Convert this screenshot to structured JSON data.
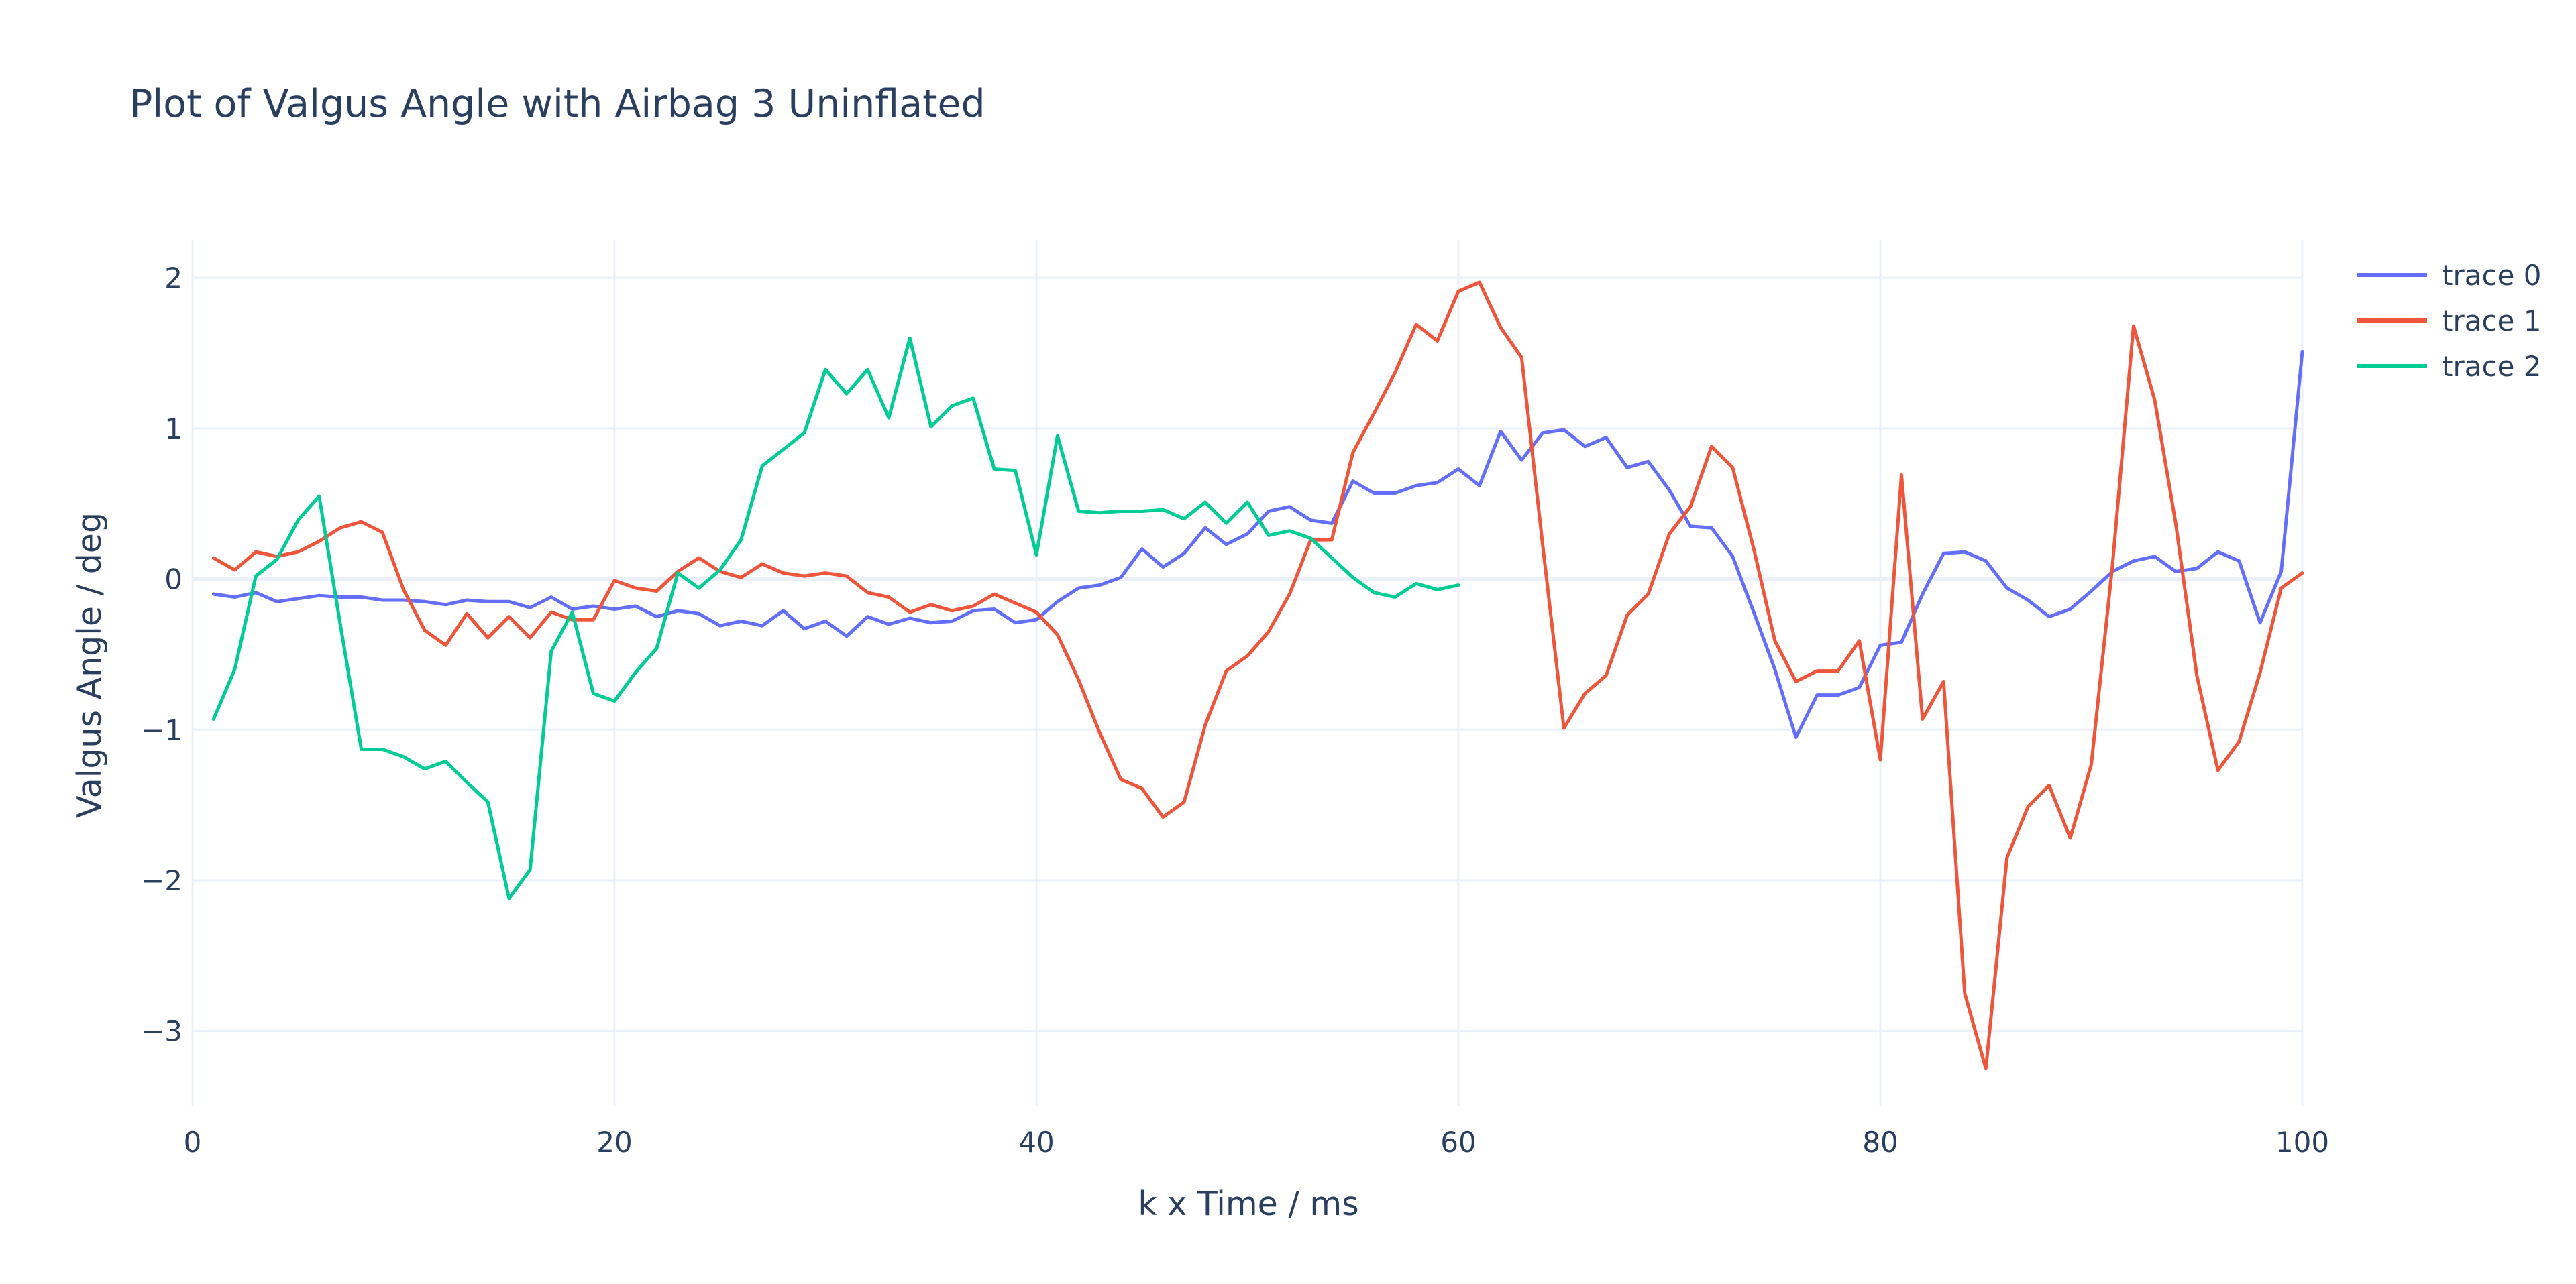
{
  "chart_data": {
    "type": "line",
    "title": "Plot of Valgus Angle with Airbag 3 Uninflated",
    "xlabel": "k x Time / ms",
    "ylabel": "Valgus Angle / deg",
    "xlim": [
      0,
      100
    ],
    "ylim": [
      -3.5,
      2.25
    ],
    "x_ticks": [
      0,
      20,
      40,
      60,
      80,
      100
    ],
    "x_tick_labels": [
      "0",
      "20",
      "40",
      "60",
      "80",
      "100"
    ],
    "y_ticks": [
      -3,
      -2,
      -1,
      0,
      1,
      2
    ],
    "y_tick_labels": [
      "−3",
      "−2",
      "−1",
      "0",
      "1",
      "2"
    ],
    "grid": true,
    "legend_position": "top-right",
    "series": [
      {
        "name": "trace 0",
        "color": "#636efa",
        "x": [
          1,
          2,
          3,
          4,
          5,
          6,
          7,
          8,
          9,
          10,
          11,
          12,
          13,
          14,
          15,
          16,
          17,
          18,
          19,
          20,
          21,
          22,
          23,
          24,
          25,
          26,
          27,
          28,
          29,
          30,
          31,
          32,
          33,
          34,
          35,
          36,
          37,
          38,
          39,
          40,
          41,
          42,
          43,
          44,
          45,
          46,
          47,
          48,
          49,
          50,
          51,
          52,
          53,
          54,
          55,
          56,
          57,
          58,
          59,
          60,
          61,
          62,
          63,
          64,
          65,
          66,
          67,
          68,
          69,
          70,
          71,
          72,
          73,
          74,
          75,
          76,
          77,
          78,
          79,
          80,
          81,
          82,
          83,
          84,
          85,
          86,
          87,
          88,
          89,
          90,
          91,
          92,
          93,
          94,
          95,
          96,
          97,
          98,
          99,
          100
        ],
        "y": [
          -0.1,
          -0.12,
          -0.09,
          -0.15,
          -0.13,
          -0.11,
          -0.12,
          -0.12,
          -0.14,
          -0.14,
          -0.15,
          -0.17,
          -0.14,
          -0.15,
          -0.15,
          -0.19,
          -0.12,
          -0.2,
          -0.18,
          -0.2,
          -0.18,
          -0.25,
          -0.21,
          -0.23,
          -0.31,
          -0.28,
          -0.31,
          -0.21,
          -0.33,
          -0.28,
          -0.38,
          -0.25,
          -0.3,
          -0.26,
          -0.29,
          -0.28,
          -0.21,
          -0.2,
          -0.29,
          -0.27,
          -0.15,
          -0.06,
          -0.04,
          0.01,
          0.2,
          0.08,
          0.17,
          0.34,
          0.23,
          0.3,
          0.45,
          0.48,
          0.39,
          0.37,
          0.65,
          0.57,
          0.57,
          0.62,
          0.64,
          0.73,
          0.62,
          0.98,
          0.79,
          0.97,
          0.99,
          0.88,
          0.94,
          0.74,
          0.78,
          0.59,
          0.35,
          0.34,
          0.15,
          -0.22,
          -0.6,
          -1.05,
          -0.77,
          -0.77,
          -0.72,
          -0.44,
          -0.42,
          -0.1,
          0.17,
          0.18,
          0.12,
          -0.06,
          -0.14,
          -0.25,
          -0.2,
          -0.08,
          0.05,
          0.12,
          0.15,
          0.05,
          0.07,
          0.18,
          0.12,
          -0.29,
          0.05,
          1.51
        ]
      },
      {
        "name": "trace 1",
        "color": "#ef553b",
        "x": [
          1,
          2,
          3,
          4,
          5,
          6,
          7,
          8,
          9,
          10,
          11,
          12,
          13,
          14,
          15,
          16,
          17,
          18,
          19,
          20,
          21,
          22,
          23,
          24,
          25,
          26,
          27,
          28,
          29,
          30,
          31,
          32,
          33,
          34,
          35,
          36,
          37,
          38,
          39,
          40,
          41,
          42,
          43,
          44,
          45,
          46,
          47,
          48,
          49,
          50,
          51,
          52,
          53,
          54,
          55,
          56,
          57,
          58,
          59,
          60,
          61,
          62,
          63,
          64,
          65,
          66,
          67,
          68,
          69,
          70,
          71,
          72,
          73,
          74,
          75,
          76,
          77,
          78,
          79,
          80,
          81,
          82,
          83,
          84,
          85,
          86,
          87,
          88,
          89,
          90,
          91,
          92,
          93,
          94,
          95,
          96,
          97,
          98,
          99,
          100
        ],
        "y": [
          0.14,
          0.06,
          0.18,
          0.15,
          0.18,
          0.25,
          0.34,
          0.38,
          0.31,
          -0.07,
          -0.34,
          -0.44,
          -0.23,
          -0.39,
          -0.25,
          -0.39,
          -0.22,
          -0.27,
          -0.27,
          -0.01,
          -0.06,
          -0.08,
          0.05,
          0.14,
          0.05,
          0.01,
          0.1,
          0.04,
          0.02,
          0.04,
          0.02,
          -0.09,
          -0.12,
          -0.22,
          -0.17,
          -0.21,
          -0.18,
          -0.1,
          -0.16,
          -0.22,
          -0.37,
          -0.67,
          -1.02,
          -1.33,
          -1.39,
          -1.58,
          -1.48,
          -0.97,
          -0.61,
          -0.51,
          -0.35,
          -0.1,
          0.26,
          0.26,
          0.84,
          1.1,
          1.37,
          1.69,
          1.58,
          1.91,
          1.97,
          1.67,
          1.47,
          0.22,
          -0.99,
          -0.76,
          -0.64,
          -0.24,
          -0.1,
          0.3,
          0.48,
          0.88,
          0.74,
          0.2,
          -0.41,
          -0.68,
          -0.61,
          -0.61,
          -0.41,
          -1.2,
          0.69,
          -0.93,
          -0.68,
          -2.75,
          -3.25,
          -1.85,
          -1.51,
          -1.37,
          -1.72,
          -1.23,
          0.09,
          1.68,
          1.19,
          0.37,
          -0.64,
          -1.27,
          -1.08,
          -0.62,
          -0.06,
          0.04
        ]
      },
      {
        "name": "trace 2",
        "color": "#00cc96",
        "x": [
          1,
          2,
          3,
          4,
          5,
          6,
          7,
          8,
          9,
          10,
          11,
          12,
          13,
          14,
          15,
          16,
          17,
          18,
          19,
          20,
          21,
          22,
          23,
          24,
          25,
          26,
          27,
          28,
          29,
          30,
          31,
          32,
          33,
          34,
          35,
          36,
          37,
          38,
          39,
          40,
          41,
          42,
          43,
          44,
          45,
          46,
          47,
          48,
          49,
          50,
          51,
          52,
          53,
          54,
          55,
          56,
          57,
          58,
          59,
          60
        ],
        "y": [
          -0.93,
          -0.6,
          0.02,
          0.13,
          0.39,
          0.55,
          -0.3,
          -1.13,
          -1.13,
          -1.18,
          -1.26,
          -1.21,
          -1.35,
          -1.48,
          -2.12,
          -1.93,
          -0.48,
          -0.22,
          -0.76,
          -0.81,
          -0.62,
          -0.46,
          0.04,
          -0.06,
          0.06,
          0.26,
          0.75,
          0.86,
          0.97,
          1.39,
          1.23,
          1.39,
          1.07,
          1.6,
          1.01,
          1.15,
          1.2,
          0.73,
          0.72,
          0.16,
          0.95,
          0.45,
          0.44,
          0.45,
          0.45,
          0.46,
          0.4,
          0.51,
          0.37,
          0.51,
          0.29,
          0.32,
          0.27,
          0.14,
          0.01,
          -0.09,
          -0.12,
          -0.03,
          -0.07,
          -0.04
        ]
      }
    ]
  }
}
